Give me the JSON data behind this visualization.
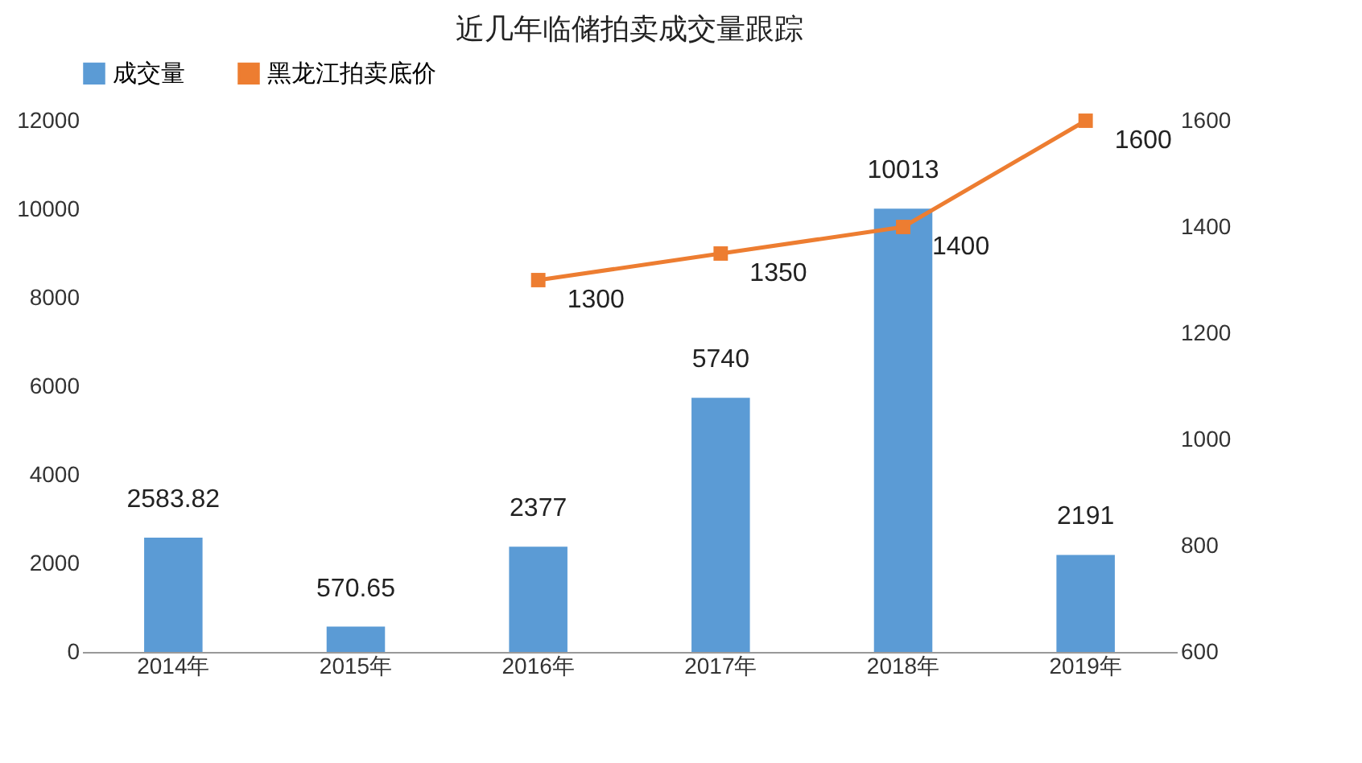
{
  "chart_data": {
    "type": "bar",
    "title": "近几年临储拍卖成交量跟踪",
    "categories": [
      "2014年",
      "2015年",
      "2016年",
      "2017年",
      "2018年",
      "2019年"
    ],
    "series": [
      {
        "name": "成交量",
        "type": "bar",
        "color": "#5b9bd5",
        "values": [
          2583.82,
          570.65,
          2377,
          5740,
          10013,
          2191
        ]
      },
      {
        "name": "黑龙江拍卖底价",
        "type": "line",
        "axis": "y2",
        "color": "#ed7d31",
        "values": [
          null,
          null,
          1300,
          1350,
          1400,
          1600
        ]
      }
    ],
    "ylim": [
      0,
      12000
    ],
    "yticks": [
      0,
      2000,
      4000,
      6000,
      8000,
      10000,
      12000
    ],
    "y2lim": [
      600,
      1600
    ],
    "y2ticks": [
      600,
      800,
      1000,
      1200,
      1400,
      1600
    ],
    "data_labels": true,
    "grid": false,
    "legend": "top",
    "marker": "square",
    "line_style": "solid"
  }
}
